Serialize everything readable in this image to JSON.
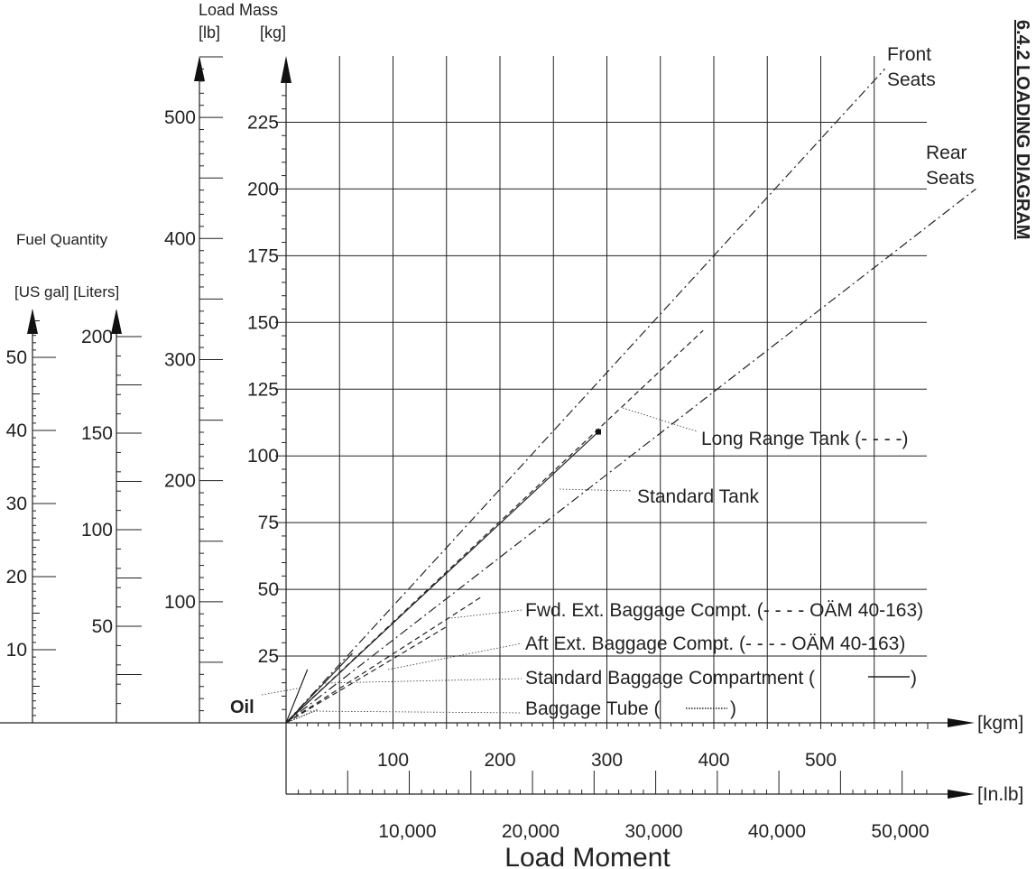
{
  "title": "6.4.2 LOADING DIAGRAM",
  "labels": {
    "load_mass": "Load Mass",
    "lb_unit": "[lb]",
    "kg_unit": "[kg]",
    "fuel_quantity": "Fuel Quantity",
    "fuel_units": "[US gal] [Liters]",
    "kgm_unit": "[kgm]",
    "inlb_unit": "[In.lb]",
    "load_moment": "Load Moment",
    "front_seats_1": "Front",
    "front_seats_2": "Seats",
    "rear_seats_1": "Rear",
    "rear_seats_2": "Seats",
    "long_range_tank": "Long Range Tank  (- - - -)",
    "standard_tank": "Standard Tank",
    "fwd_ext_baggage": "Fwd. Ext. Baggage Compt. (- - - -  OÄM 40-163)",
    "aft_ext_baggage": "Aft Ext. Baggage Compt. (- - - -  OÄM 40-163)",
    "standard_baggage": "Standard Baggage Compartment (",
    "standard_baggage_close": ")",
    "baggage_tube": "Baggage Tube (",
    "baggage_tube_close": ")",
    "oil": "Oil"
  },
  "chart_data": {
    "type": "line",
    "title": "6.4.2 LOADING DIAGRAM",
    "xlabel": "Load Moment",
    "x_unit": "[kgm]",
    "x2_unit": "[In.lb]",
    "ylabel": "Load Mass",
    "y_unit": "[kg]",
    "xlim": [
      0,
      600
    ],
    "ylim": [
      0,
      250
    ],
    "x_ticks": [
      100,
      200,
      300,
      400,
      500
    ],
    "x_ticks_inlb": [
      "10,000",
      "20,000",
      "30,000",
      "40,000",
      "50,000"
    ],
    "y_ticks_kg": [
      25,
      50,
      75,
      100,
      125,
      150,
      175,
      200,
      225
    ],
    "y_ticks_lb": [
      100,
      200,
      300,
      400,
      500
    ],
    "fuel_gal_ticks": [
      10,
      20,
      30,
      40,
      50
    ],
    "fuel_liter_ticks": [
      50,
      100,
      150,
      200
    ],
    "grid": true,
    "series": [
      {
        "name": "Front Seats",
        "style": "dashdot",
        "points": [
          [
            0,
            0
          ],
          [
            560,
            245
          ]
        ]
      },
      {
        "name": "Rear Seats",
        "style": "dashdot",
        "points": [
          [
            0,
            0
          ],
          [
            645,
            200
          ]
        ]
      },
      {
        "name": "Long Range Tank",
        "style": "dashed",
        "points": [
          [
            0,
            0
          ],
          [
            390,
            147
          ]
        ]
      },
      {
        "name": "Standard Tank",
        "style": "solid",
        "points": [
          [
            0,
            0
          ],
          [
            292,
            109
          ]
        ],
        "end_marker": true
      },
      {
        "name": "Fwd. Ext. Baggage Compt.",
        "style": "dashed",
        "points": [
          [
            0,
            0
          ],
          [
            182,
            47
          ]
        ]
      },
      {
        "name": "Aft Ext. Baggage Compt.",
        "style": "dashed",
        "points": [
          [
            0,
            0
          ],
          [
            150,
            36
          ]
        ]
      },
      {
        "name": "Standard Baggage Compartment",
        "style": "solid",
        "points": [
          [
            0,
            0
          ],
          [
            62,
            26
          ]
        ]
      },
      {
        "name": "Baggage Tube",
        "style": "dotted",
        "points": [
          [
            0,
            0
          ],
          [
            30,
            5
          ]
        ]
      },
      {
        "name": "Oil",
        "style": "solid",
        "points": [
          [
            0,
            0
          ],
          [
            20,
            20
          ]
        ]
      }
    ]
  }
}
